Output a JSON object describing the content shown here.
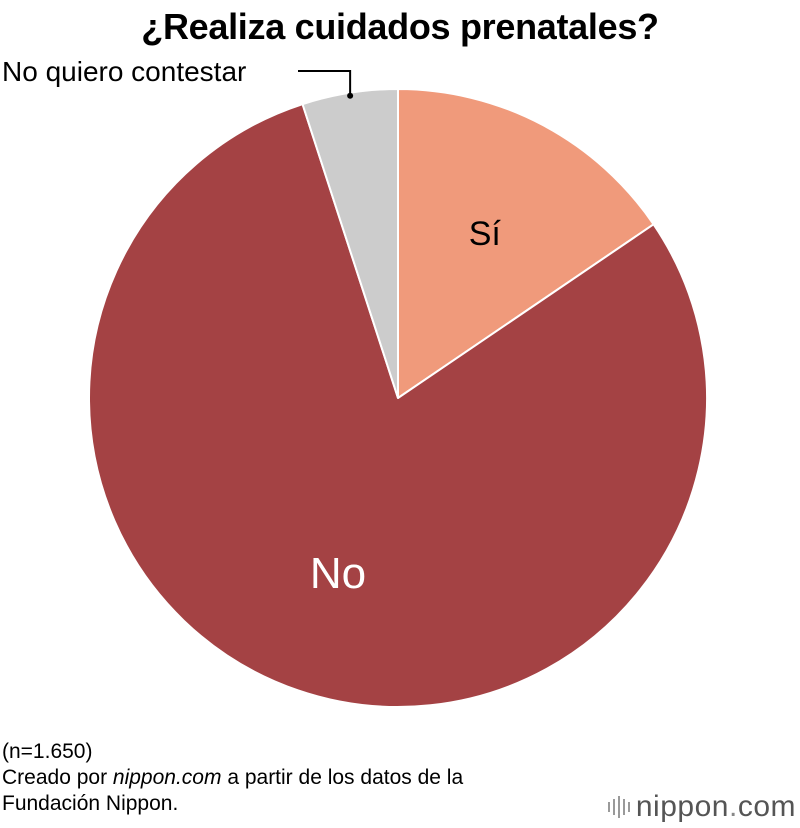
{
  "chart_data": {
    "type": "pie",
    "title": "¿Realiza cuidados prenatales?",
    "slices": [
      {
        "label": "Sí",
        "value": 15.5,
        "color": "#f09a7b",
        "label_color": "#000000"
      },
      {
        "label": "No",
        "value": 79.5,
        "color": "#a44244",
        "label_color": "#ffffff"
      },
      {
        "label": "No quiero contestar",
        "value": 5.0,
        "color": "#cccccc",
        "label_color": "#000000",
        "callout": true
      }
    ],
    "start_angle": "12 o'clock",
    "direction": "clockwise"
  },
  "footer": {
    "sample": "(n=1.650)",
    "source_prefix": "Creado por ",
    "source_site": "nippon.com",
    "source_suffix": " a partir de los datos de la",
    "source_line2": "Fundación Nippon."
  },
  "brand": {
    "name": "nippon",
    "dot": ".",
    "tld": "com",
    "color": "#555555"
  }
}
